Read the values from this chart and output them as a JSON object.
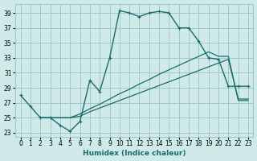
{
  "xlabel": "Humidex (Indice chaleur)",
  "bg_color": "#d0eaea",
  "grid_color": "#a0c8c8",
  "line_color": "#1a6b6b",
  "xlim": [
    -0.5,
    23.5
  ],
  "ylim": [
    22.5,
    40.2
  ],
  "xticks": [
    0,
    1,
    2,
    3,
    4,
    5,
    6,
    7,
    8,
    9,
    10,
    11,
    12,
    13,
    14,
    15,
    16,
    17,
    18,
    19,
    20,
    21,
    22,
    23
  ],
  "yticks": [
    23,
    25,
    27,
    29,
    31,
    33,
    35,
    37,
    39
  ],
  "line1_x": [
    0,
    1,
    2,
    3,
    4,
    5,
    6,
    7,
    8,
    9,
    10,
    11,
    12,
    13,
    14,
    15,
    16,
    17,
    18,
    19,
    20,
    21,
    22,
    23
  ],
  "line1_y": [
    28,
    26.5,
    25,
    25,
    24,
    23.2,
    24.5,
    30,
    28.5,
    33,
    39.3,
    39,
    38.5,
    39,
    39.2,
    39,
    37,
    37,
    35.2,
    33,
    32.8,
    29.2,
    29.2,
    29.2
  ],
  "line2_x": [
    2,
    3,
    4,
    5,
    6,
    7,
    8,
    9,
    10,
    11,
    12,
    13,
    14,
    15,
    16,
    17,
    18,
    19,
    20,
    21,
    22,
    23
  ],
  "line2_y": [
    25,
    25,
    25,
    25,
    25.5,
    26.2,
    26.8,
    27.5,
    28.2,
    28.8,
    29.5,
    30.1,
    30.8,
    31.4,
    32.0,
    32.6,
    33.2,
    33.8,
    33.2,
    33.2,
    27.3,
    27.3
  ],
  "line3_x": [
    2,
    3,
    4,
    5,
    6,
    7,
    8,
    9,
    10,
    11,
    12,
    13,
    14,
    15,
    16,
    17,
    18,
    19,
    20,
    21,
    22,
    23
  ],
  "line3_y": [
    25,
    25,
    25,
    25,
    25.2,
    25.8,
    26.3,
    26.8,
    27.3,
    27.8,
    28.3,
    28.8,
    29.3,
    29.8,
    30.3,
    30.8,
    31.3,
    31.8,
    32.3,
    32.8,
    27.5,
    27.5
  ]
}
